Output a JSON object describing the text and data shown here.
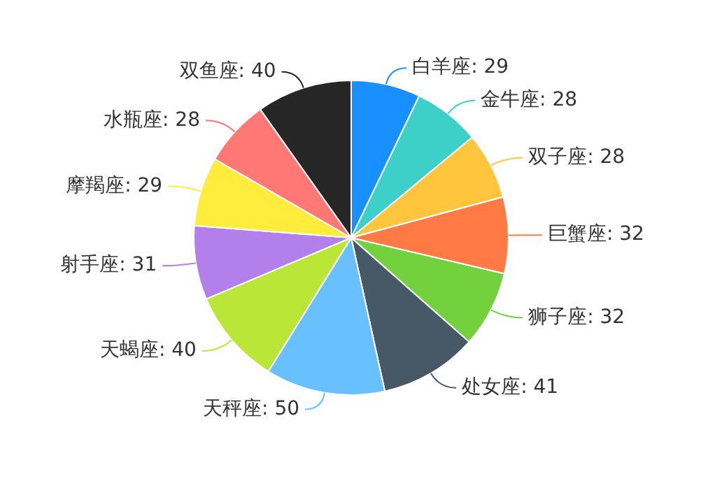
{
  "chart_data": {
    "type": "pie",
    "categories": [
      "白羊座",
      "金牛座",
      "双子座",
      "巨蟹座",
      "狮子座",
      "处女座",
      "天秤座",
      "天蝎座",
      "射手座",
      "摩羯座",
      "水瓶座",
      "双鱼座"
    ],
    "values": [
      29,
      28,
      28,
      32,
      32,
      41,
      50,
      40,
      31,
      29,
      28,
      40
    ],
    "colors": [
      "#1890ff",
      "#3cd0c8",
      "#ffc53d",
      "#ff7a45",
      "#73d13d",
      "#475866",
      "#69c0ff",
      "#bae637",
      "#b37feb",
      "#ffec3d",
      "#ff7875",
      "#262626"
    ],
    "value_labels": [
      ": 29",
      ": 28",
      ": 28",
      ": 32",
      ": 32",
      ": 41",
      ": 50",
      ": 40",
      ": 31",
      ": 29",
      ": 28",
      ": 40"
    ],
    "legend": false
  }
}
